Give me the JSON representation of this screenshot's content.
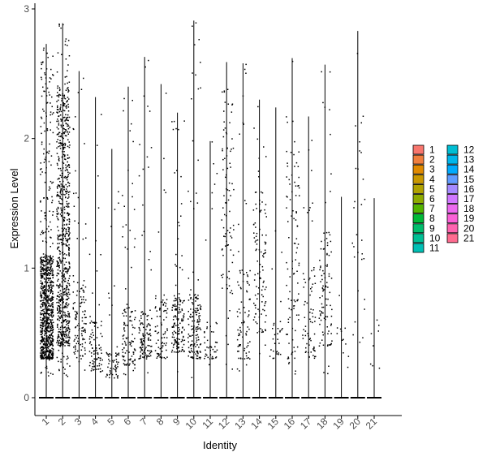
{
  "chart_data": {
    "type": "violin",
    "xlabel": "Identity",
    "ylabel": "Expression Level",
    "ylim": [
      -0.15,
      3.0
    ],
    "yticks": [
      0,
      1,
      2,
      3
    ],
    "categories": [
      "1",
      "2",
      "3",
      "4",
      "5",
      "6",
      "7",
      "8",
      "9",
      "10",
      "11",
      "12",
      "13",
      "14",
      "15",
      "16",
      "17",
      "18",
      "19",
      "20",
      "21"
    ],
    "max_values": [
      2.73,
      2.89,
      2.52,
      2.32,
      1.92,
      2.4,
      2.63,
      2.42,
      2.2,
      2.91,
      1.98,
      2.59,
      2.58,
      2.3,
      2.24,
      2.62,
      2.17,
      2.57,
      1.55,
      2.83,
      1.54
    ],
    "point_bands": [
      [
        0.3,
        1.1
      ],
      [
        0.4,
        2.4
      ],
      [
        0.3,
        0.9
      ],
      [
        0.2,
        0.6
      ],
      [
        0.15,
        0.35
      ],
      [
        0.25,
        0.7
      ],
      [
        0.3,
        0.7
      ],
      [
        0.3,
        0.8
      ],
      [
        0.35,
        0.8
      ],
      [
        0.3,
        0.8
      ],
      [
        0.3,
        0.6
      ],
      [
        0.8,
        2.4
      ],
      [
        0.3,
        1.0
      ],
      [
        0.5,
        1.6
      ],
      [
        0.3,
        0.6
      ],
      [
        0.3,
        2.0
      ],
      [
        0.3,
        1.0
      ],
      [
        0.4,
        1.3
      ],
      [
        0.3,
        0.6
      ],
      [
        0.4,
        2.2
      ],
      [
        0.2,
        0.6
      ]
    ],
    "point_counts": [
      900,
      800,
      120,
      90,
      60,
      120,
      120,
      80,
      150,
      150,
      50,
      90,
      90,
      110,
      30,
      100,
      70,
      100,
      12,
      30,
      8
    ],
    "legend": {
      "placement": "right",
      "columns": [
        [
          "1",
          "2",
          "3",
          "4",
          "5",
          "6",
          "7",
          "8",
          "9",
          "10",
          "11"
        ],
        [
          "12",
          "13",
          "14",
          "15",
          "16",
          "17",
          "18",
          "19",
          "20",
          "21"
        ]
      ]
    },
    "colors": [
      "#F8766D",
      "#F07F3E",
      "#E08A00",
      "#C99800",
      "#B0A200",
      "#8EAB00",
      "#53B400",
      "#00BA38",
      "#00BE6C",
      "#00C094",
      "#00C0B5",
      "#00BDD3",
      "#00B6EB",
      "#00ABFD",
      "#619CFF",
      "#A58AFF",
      "#D077FF",
      "#EC69EF",
      "#FB61D7",
      "#FF64B0",
      "#FF6C90"
    ]
  }
}
